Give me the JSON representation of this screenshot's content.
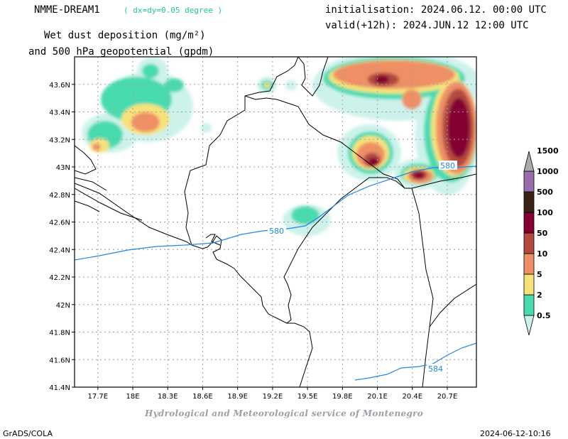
{
  "header": {
    "model_name": "NMME-DREAM1",
    "model_resolution": "( dx=dy=0.05 degree )",
    "initialisation": "initialisation: 2024.06.12. 00:00 UTC",
    "valid": "valid(+12h): 2024.JUN.12 12:00 UTC",
    "title_line1": "Wet dust deposition (mg/m²)",
    "title_line2": "and 500 hPa geopotential (gpdm)"
  },
  "footer": {
    "credit": "Hydrological and Meteorological service of Montenegro",
    "software": "GrADS/COLA",
    "timestamp": "2024-06-12-10:16"
  },
  "map": {
    "lon_range": [
      17.5,
      20.95
    ],
    "lat_range": [
      41.4,
      43.8
    ],
    "lat_ticks": [
      "43.6N",
      "43.4N",
      "43.2N",
      "43N",
      "42.8N",
      "42.6N",
      "42.4N",
      "42.2N",
      "42N",
      "41.8N",
      "41.6N",
      "41.4N"
    ],
    "lon_ticks": [
      "17.7E",
      "18E",
      "18.3E",
      "18.6E",
      "18.9E",
      "19.2E",
      "19.5E",
      "19.8E",
      "20.1E",
      "20.4E",
      "20.7E"
    ],
    "contour_labels": [
      "580",
      "580",
      "584"
    ],
    "colors": {
      "contour": "#1e88e5",
      "border": "#000000",
      "grid": "#9e9e9e"
    }
  },
  "colorbar": {
    "labels": [
      "0.5",
      "2",
      "5",
      "10",
      "50",
      "100",
      "500",
      "1000",
      "1500"
    ],
    "colors": [
      "#cdf2ec",
      "#49dbb0",
      "#f7e27a",
      "#ef8f66",
      "#b4493f",
      "#850031",
      "#3b2216",
      "#986dab",
      "#aaaaaa"
    ]
  }
}
